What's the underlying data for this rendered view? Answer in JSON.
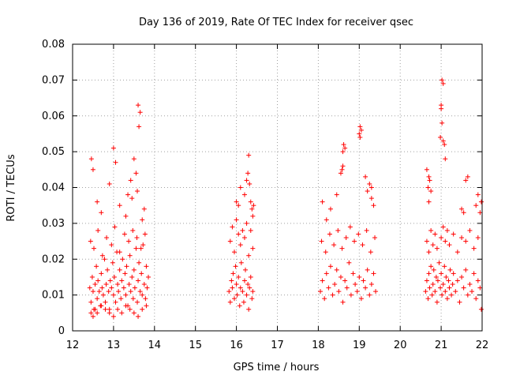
{
  "chart_data": {
    "type": "scatter",
    "title": "Day 136 of 2019, Rate Of TEC Index for receiver qsec",
    "xlabel": "GPS time / hours",
    "ylabel": "ROTI / TECUs",
    "xlim": [
      12,
      22
    ],
    "ylim": [
      0,
      0.08
    ],
    "grid": true,
    "marker": "+",
    "marker_color": "#ff0000",
    "x_ticks": [
      "12",
      "13",
      "14",
      "15",
      "16",
      "17",
      "18",
      "19",
      "20",
      "21",
      "22"
    ],
    "y_ticks": [
      "0",
      "0.01",
      "0.02",
      "0.03",
      "0.04",
      "0.05",
      "0.06",
      "0.07",
      "0.08"
    ],
    "series": [
      {
        "name": "ROTI",
        "x": [
          12.42,
          12.45,
          12.48,
          12.5,
          12.52,
          12.55,
          12.58,
          12.6,
          12.62,
          12.65,
          12.68,
          12.7,
          12.72,
          12.75,
          12.78,
          12.8,
          12.82,
          12.85,
          12.88,
          12.9,
          12.92,
          12.95,
          12.98,
          13.0,
          13.02,
          13.05,
          13.08,
          13.1,
          13.12,
          13.15,
          13.18,
          13.2,
          13.22,
          13.25,
          13.28,
          13.3,
          13.32,
          13.35,
          13.38,
          13.4,
          13.42,
          13.45,
          13.48,
          13.5,
          13.52,
          13.55,
          13.58,
          13.6,
          13.62,
          13.65,
          13.68,
          13.7,
          13.72,
          13.75,
          13.78,
          13.8,
          13.82,
          13.85,
          12.45,
          12.5,
          12.55,
          12.6,
          12.7,
          12.8,
          12.9,
          13.0,
          13.1,
          13.2,
          13.3,
          13.4,
          13.5,
          13.6,
          13.7,
          13.8,
          12.44,
          12.52,
          12.62,
          12.73,
          12.83,
          12.95,
          13.03,
          13.15,
          13.27,
          13.37,
          13.47,
          13.57,
          13.67,
          13.77,
          12.46,
          12.5,
          13.0,
          13.05,
          13.35,
          13.42,
          13.5,
          13.55,
          13.58,
          13.6,
          13.62,
          13.65,
          12.6,
          12.7,
          12.9,
          13.15,
          13.3,
          13.45,
          13.7,
          13.75,
          15.82,
          15.85,
          15.88,
          15.9,
          15.92,
          15.95,
          15.98,
          16.0,
          16.02,
          16.05,
          16.08,
          16.1,
          16.12,
          16.15,
          16.18,
          16.2,
          16.22,
          16.25,
          16.28,
          16.3,
          16.32,
          16.35,
          16.38,
          16.4,
          15.85,
          15.9,
          15.95,
          16.0,
          16.05,
          16.1,
          16.15,
          16.2,
          16.25,
          16.3,
          16.35,
          16.4,
          16.0,
          16.05,
          16.1,
          16.2,
          16.25,
          16.28,
          16.3,
          16.32,
          16.35,
          16.38,
          16.4,
          16.42,
          18.05,
          18.1,
          18.15,
          18.2,
          18.25,
          18.3,
          18.35,
          18.4,
          18.45,
          18.5,
          18.55,
          18.6,
          18.65,
          18.7,
          18.75,
          18.8,
          18.85,
          18.9,
          18.95,
          19.0,
          19.05,
          19.1,
          19.15,
          19.2,
          19.25,
          19.3,
          19.35,
          19.4,
          18.08,
          18.18,
          18.28,
          18.38,
          18.48,
          18.58,
          18.68,
          18.78,
          18.88,
          18.98,
          19.08,
          19.18,
          19.28,
          19.38,
          18.1,
          18.2,
          18.3,
          18.45,
          18.55,
          18.6,
          18.62,
          18.65,
          18.6,
          18.58,
          19.0,
          19.02,
          19.05,
          19.02,
          19.15,
          19.2,
          19.25,
          19.3,
          19.35,
          19.3,
          20.62,
          20.65,
          20.68,
          20.7,
          20.72,
          20.75,
          20.78,
          20.8,
          20.82,
          20.85,
          20.88,
          20.9,
          20.92,
          20.95,
          20.98,
          21.0,
          21.02,
          21.05,
          21.08,
          21.1,
          21.12,
          21.15,
          21.18,
          21.2,
          21.22,
          21.25,
          21.28,
          21.3,
          21.35,
          21.4,
          21.45,
          21.5,
          21.55,
          21.6,
          21.65,
          21.7,
          21.75,
          21.8,
          21.85,
          21.9,
          21.95,
          21.98,
          20.65,
          20.7,
          20.75,
          20.8,
          20.85,
          20.9,
          21.0,
          21.05,
          21.1,
          21.15,
          21.2,
          21.3,
          21.4,
          21.5,
          21.6,
          21.7,
          21.8,
          21.9,
          20.65,
          20.7,
          20.75,
          20.7,
          20.68,
          20.72,
          20.98,
          21.0,
          21.02,
          21.05,
          21.0,
          21.02,
          21.05,
          21.08,
          21.1,
          21.5,
          21.55,
          21.6,
          21.65,
          21.85,
          21.9,
          21.95,
          21.98
        ],
        "y": [
          0.012,
          0.008,
          0.015,
          0.011,
          0.006,
          0.013,
          0.018,
          0.009,
          0.014,
          0.011,
          0.007,
          0.016,
          0.012,
          0.01,
          0.02,
          0.008,
          0.013,
          0.017,
          0.011,
          0.006,
          0.014,
          0.012,
          0.019,
          0.01,
          0.015,
          0.008,
          0.022,
          0.013,
          0.011,
          0.017,
          0.009,
          0.014,
          0.02,
          0.012,
          0.016,
          0.01,
          0.018,
          0.007,
          0.013,
          0.021,
          0.011,
          0.015,
          0.009,
          0.017,
          0.012,
          0.023,
          0.008,
          0.014,
          0.019,
          0.011,
          0.016,
          0.01,
          0.024,
          0.013,
          0.009,
          0.018,
          0.012,
          0.015,
          0.005,
          0.004,
          0.006,
          0.005,
          0.007,
          0.006,
          0.005,
          0.004,
          0.006,
          0.005,
          0.007,
          0.006,
          0.005,
          0.004,
          0.006,
          0.007,
          0.025,
          0.023,
          0.028,
          0.021,
          0.026,
          0.024,
          0.029,
          0.022,
          0.027,
          0.025,
          0.028,
          0.026,
          0.023,
          0.027,
          0.048,
          0.045,
          0.051,
          0.047,
          0.038,
          0.042,
          0.048,
          0.044,
          0.039,
          0.063,
          0.057,
          0.061,
          0.036,
          0.033,
          0.041,
          0.035,
          0.032,
          0.037,
          0.031,
          0.034,
          0.011,
          0.008,
          0.014,
          0.012,
          0.016,
          0.009,
          0.018,
          0.013,
          0.01,
          0.015,
          0.007,
          0.012,
          0.019,
          0.011,
          0.008,
          0.014,
          0.017,
          0.01,
          0.013,
          0.006,
          0.012,
          0.015,
          0.009,
          0.011,
          0.025,
          0.029,
          0.022,
          0.031,
          0.027,
          0.024,
          0.028,
          0.026,
          0.03,
          0.021,
          0.028,
          0.023,
          0.036,
          0.035,
          0.04,
          0.038,
          0.042,
          0.044,
          0.049,
          0.041,
          0.036,
          0.034,
          0.032,
          0.035,
          0.011,
          0.014,
          0.009,
          0.016,
          0.012,
          0.018,
          0.01,
          0.013,
          0.017,
          0.011,
          0.015,
          0.008,
          0.014,
          0.012,
          0.019,
          0.01,
          0.016,
          0.013,
          0.011,
          0.015,
          0.009,
          0.014,
          0.012,
          0.017,
          0.01,
          0.013,
          0.016,
          0.011,
          0.025,
          0.022,
          0.027,
          0.024,
          0.028,
          0.023,
          0.026,
          0.029,
          0.025,
          0.027,
          0.024,
          0.028,
          0.022,
          0.026,
          0.036,
          0.031,
          0.034,
          0.038,
          0.044,
          0.05,
          0.052,
          0.051,
          0.046,
          0.045,
          0.055,
          0.057,
          0.056,
          0.054,
          0.043,
          0.039,
          0.041,
          0.037,
          0.035,
          0.04,
          0.011,
          0.014,
          0.009,
          0.016,
          0.012,
          0.018,
          0.01,
          0.013,
          0.017,
          0.011,
          0.015,
          0.008,
          0.014,
          0.019,
          0.012,
          0.016,
          0.01,
          0.013,
          0.018,
          0.011,
          0.015,
          0.009,
          0.014,
          0.012,
          0.017,
          0.01,
          0.013,
          0.016,
          0.011,
          0.014,
          0.008,
          0.015,
          0.012,
          0.017,
          0.01,
          0.013,
          0.011,
          0.016,
          0.009,
          0.014,
          0.012,
          0.006,
          0.025,
          0.022,
          0.028,
          0.024,
          0.027,
          0.023,
          0.026,
          0.029,
          0.025,
          0.028,
          0.024,
          0.027,
          0.022,
          0.026,
          0.025,
          0.028,
          0.023,
          0.026,
          0.045,
          0.043,
          0.039,
          0.036,
          0.04,
          0.042,
          0.054,
          0.063,
          0.07,
          0.069,
          0.062,
          0.058,
          0.053,
          0.052,
          0.048,
          0.034,
          0.033,
          0.042,
          0.043,
          0.035,
          0.038,
          0.033,
          0.036
        ]
      }
    ]
  }
}
